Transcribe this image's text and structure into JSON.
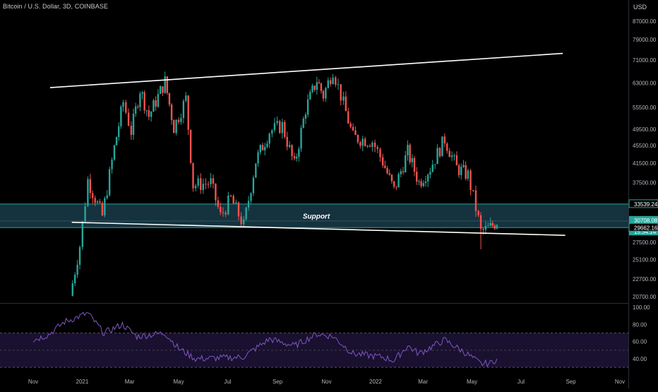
{
  "header": {
    "symbol_title": "Bitcoin / U.S. Dollar, 3D, COINBASE",
    "currency": "USD"
  },
  "colors": {
    "up": "#26a69a",
    "down": "#ef5350",
    "support_zone_fill": "#15323e",
    "support_zone_border": "#26a69a",
    "trendline": "#ffffff",
    "rsi_line": "#7e57c2",
    "rsi_band_fill": "#1a1030",
    "axis_text": "#b2b5be",
    "background": "#000000"
  },
  "chart_data": [
    {
      "type": "candlestick",
      "title": "",
      "y_axis": {
        "scale": "log",
        "ticks": [
          {
            "value": 87000,
            "label": "87000.00"
          },
          {
            "value": 79000,
            "label": "79000.00"
          },
          {
            "value": 71000,
            "label": "71000.00"
          },
          {
            "value": 63000,
            "label": "63000.00"
          },
          {
            "value": 55500,
            "label": "55500.00"
          },
          {
            "value": 49500,
            "label": "49500.00"
          },
          {
            "value": 45500,
            "label": "45500.00"
          },
          {
            "value": 41500,
            "label": "41500.00"
          },
          {
            "value": 37500,
            "label": "37500.00"
          },
          {
            "value": 27500,
            "label": "27500.00"
          },
          {
            "value": 25100,
            "label": "25100.00"
          },
          {
            "value": 22700,
            "label": "22700.00"
          },
          {
            "value": 20700,
            "label": "20700.00"
          }
        ],
        "price_labels": [
          {
            "value": 33539.24,
            "label": "33539.24",
            "style": "outline"
          },
          {
            "value": 30708.08,
            "label": "30708.08",
            "style": "filled"
          },
          {
            "value": 30000,
            "label": "15:34:14",
            "style": "filled"
          },
          {
            "value": 29662.16,
            "label": "29662.16",
            "style": "outline"
          }
        ]
      },
      "x_axis": {
        "ticks": [
          {
            "date": "2020-11-01",
            "label": "Nov"
          },
          {
            "date": "2021-01-01",
            "label": "2021"
          },
          {
            "date": "2021-03-01",
            "label": "Mar"
          },
          {
            "date": "2021-05-01",
            "label": "May"
          },
          {
            "date": "2021-07-01",
            "label": "Jul"
          },
          {
            "date": "2021-09-01",
            "label": "Sep"
          },
          {
            "date": "2021-11-01",
            "label": "Nov"
          },
          {
            "date": "2022-01-01",
            "label": "2022"
          },
          {
            "date": "2022-03-01",
            "label": "Mar"
          },
          {
            "date": "2022-05-01",
            "label": "May"
          },
          {
            "date": "2022-07-01",
            "label": "Jul"
          },
          {
            "date": "2022-09-01",
            "label": "Sep"
          },
          {
            "date": "2022-11-01",
            "label": "Nov"
          }
        ]
      },
      "key_points": [
        {
          "date": "2020-12-17",
          "close": 20800
        },
        {
          "date": "2020-12-29",
          "close": 27000
        },
        {
          "date": "2021-01-08",
          "close": 38000
        },
        {
          "date": "2021-01-26",
          "close": 31500
        },
        {
          "date": "2021-02-10",
          "close": 45000
        },
        {
          "date": "2021-02-21",
          "close": 57000
        },
        {
          "date": "2021-03-03",
          "close": 49000
        },
        {
          "date": "2021-03-14",
          "close": 61000
        },
        {
          "date": "2021-03-25",
          "close": 53000
        },
        {
          "date": "2021-04-14",
          "close": 63500
        },
        {
          "date": "2021-04-25",
          "close": 50000
        },
        {
          "date": "2021-05-10",
          "close": 58000
        },
        {
          "date": "2021-05-19",
          "close": 37000
        },
        {
          "date": "2021-06-10",
          "close": 37500
        },
        {
          "date": "2021-06-22",
          "close": 31500
        },
        {
          "date": "2021-07-05",
          "close": 34500
        },
        {
          "date": "2021-07-21",
          "close": 30000
        },
        {
          "date": "2021-08-05",
          "close": 42000
        },
        {
          "date": "2021-08-22",
          "close": 49000
        },
        {
          "date": "2021-09-07",
          "close": 50500
        },
        {
          "date": "2021-09-22",
          "close": 41000
        },
        {
          "date": "2021-10-06",
          "close": 55000
        },
        {
          "date": "2021-10-20",
          "close": 64000
        },
        {
          "date": "2021-10-28",
          "close": 59000
        },
        {
          "date": "2021-11-09",
          "close": 67500
        },
        {
          "date": "2021-11-22",
          "close": 56500
        },
        {
          "date": "2021-12-04",
          "close": 47500
        },
        {
          "date": "2021-12-28",
          "close": 46500
        },
        {
          "date": "2022-01-10",
          "close": 41800
        },
        {
          "date": "2022-01-24",
          "close": 36000
        },
        {
          "date": "2022-02-10",
          "close": 44000
        },
        {
          "date": "2022-02-24",
          "close": 37500
        },
        {
          "date": "2022-03-10",
          "close": 40500
        },
        {
          "date": "2022-03-28",
          "close": 47000
        },
        {
          "date": "2022-04-12",
          "close": 40500
        },
        {
          "date": "2022-04-26",
          "close": 39000
        },
        {
          "date": "2022-05-09",
          "close": 31000
        },
        {
          "date": "2022-05-12",
          "close": 29000
        },
        {
          "date": "2022-05-24",
          "close": 29700
        },
        {
          "date": "2022-06-01",
          "close": 30700
        }
      ],
      "support_zone": {
        "top": 33539.24,
        "bottom": 29662.16,
        "mid": 30708.08,
        "label": "Support"
      },
      "trendlines": [
        {
          "from": {
            "date": "2020-11-22",
            "price": 61500
          },
          "to": {
            "date": "2022-08-22",
            "price": 73500
          }
        },
        {
          "from": {
            "date": "2020-12-19",
            "price": 30500
          },
          "to": {
            "date": "2022-08-25",
            "price": 28500
          }
        }
      ]
    },
    {
      "type": "line",
      "name": "",
      "y_axis": {
        "ticks": [
          {
            "value": 100,
            "label": "100.00"
          },
          {
            "value": 80,
            "label": "80.00"
          },
          {
            "value": 60,
            "label": "60.00"
          },
          {
            "value": 40,
            "label": "40.00"
          }
        ]
      },
      "band": [
        30,
        70
      ],
      "midline": 50,
      "key_points": [
        {
          "date": "2020-11-01",
          "value": 62
        },
        {
          "date": "2020-11-20",
          "value": 68
        },
        {
          "date": "2020-12-10",
          "value": 83
        },
        {
          "date": "2021-01-08",
          "value": 93
        },
        {
          "date": "2021-01-28",
          "value": 70
        },
        {
          "date": "2021-02-20",
          "value": 80
        },
        {
          "date": "2021-03-10",
          "value": 66
        },
        {
          "date": "2021-04-14",
          "value": 70
        },
        {
          "date": "2021-05-01",
          "value": 52
        },
        {
          "date": "2021-05-22",
          "value": 40
        },
        {
          "date": "2021-06-22",
          "value": 41
        },
        {
          "date": "2021-07-20",
          "value": 42
        },
        {
          "date": "2021-08-22",
          "value": 63
        },
        {
          "date": "2021-09-22",
          "value": 55
        },
        {
          "date": "2021-10-20",
          "value": 69
        },
        {
          "date": "2021-11-09",
          "value": 66
        },
        {
          "date": "2021-12-04",
          "value": 46
        },
        {
          "date": "2022-01-10",
          "value": 42
        },
        {
          "date": "2022-01-24",
          "value": 38
        },
        {
          "date": "2022-02-10",
          "value": 55
        },
        {
          "date": "2022-02-24",
          "value": 46
        },
        {
          "date": "2022-03-28",
          "value": 62
        },
        {
          "date": "2022-04-26",
          "value": 45
        },
        {
          "date": "2022-05-12",
          "value": 34
        },
        {
          "date": "2022-05-24",
          "value": 35
        },
        {
          "date": "2022-06-01",
          "value": 40
        }
      ]
    }
  ]
}
